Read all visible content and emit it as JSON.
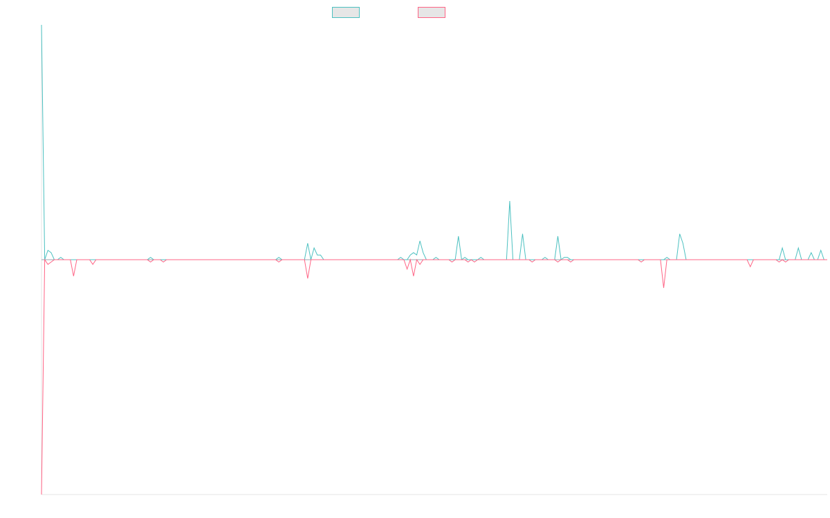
{
  "chart_data": {
    "type": "line",
    "title": "",
    "xlabel": "",
    "ylabel": "",
    "grid": false,
    "legend_position": "top-center",
    "ylim": [
      -100,
      100
    ],
    "series": [
      {
        "name": "",
        "color": "#4bc0c0",
        "values": [
          100,
          0,
          4,
          3,
          0,
          0,
          1,
          0,
          0,
          0,
          0,
          0,
          0,
          0,
          0,
          0,
          0,
          0,
          0,
          0,
          0,
          0,
          0,
          0,
          0,
          0,
          0,
          0,
          0,
          0,
          0,
          0,
          0,
          0,
          1,
          0,
          0,
          0,
          0,
          0,
          0,
          0,
          0,
          0,
          0,
          0,
          0,
          0,
          0,
          0,
          0,
          0,
          0,
          0,
          0,
          0,
          0,
          0,
          0,
          0,
          0,
          0,
          0,
          0,
          0,
          0,
          0,
          0,
          0,
          0,
          0,
          0,
          0,
          0,
          1,
          0,
          0,
          0,
          0,
          0,
          0,
          0,
          0,
          7,
          0,
          5,
          2,
          2,
          0,
          0,
          0,
          0,
          0,
          0,
          0,
          0,
          0,
          0,
          0,
          0,
          0,
          0,
          0,
          0,
          0,
          0,
          0,
          0,
          0,
          0,
          0,
          0,
          1,
          0,
          0,
          2,
          3,
          2,
          8,
          3,
          0,
          0,
          0,
          1,
          0,
          0,
          0,
          0,
          0,
          0,
          10,
          0,
          1,
          0,
          0,
          0,
          0,
          1,
          0,
          0,
          0,
          0,
          0,
          0,
          0,
          0,
          25,
          0,
          0,
          0,
          11,
          0,
          0,
          0,
          0,
          0,
          0,
          1,
          0,
          0,
          0,
          10,
          0,
          1,
          1,
          0,
          0,
          0,
          0,
          0,
          0,
          0,
          0,
          0,
          0,
          0,
          0,
          0,
          0,
          0,
          0,
          0,
          0,
          0,
          0,
          0,
          0,
          0,
          0,
          0,
          0,
          0,
          0,
          0,
          0,
          1,
          0,
          0,
          0,
          11,
          7,
          0,
          0,
          0,
          0,
          0,
          0,
          0,
          0,
          0,
          0,
          0,
          0,
          0,
          0,
          0,
          0,
          0,
          0,
          0,
          0,
          0,
          0,
          0,
          0,
          0,
          0,
          0,
          0,
          0,
          0,
          5,
          0,
          0,
          0,
          0,
          5,
          0,
          0,
          0,
          3,
          0,
          0,
          4,
          0
        ]
      },
      {
        "name": "",
        "color": "#ff6384",
        "values": [
          -100,
          0,
          -2,
          -1,
          0,
          0,
          0,
          0,
          0,
          0,
          -7,
          0,
          0,
          0,
          0,
          0,
          -2,
          0,
          0,
          0,
          0,
          0,
          0,
          0,
          0,
          0,
          0,
          0,
          0,
          0,
          0,
          0,
          0,
          0,
          -1,
          0,
          0,
          0,
          -1,
          0,
          0,
          0,
          0,
          0,
          0,
          0,
          0,
          0,
          0,
          0,
          0,
          0,
          0,
          0,
          0,
          0,
          0,
          0,
          0,
          0,
          0,
          0,
          0,
          0,
          0,
          0,
          0,
          0,
          0,
          0,
          0,
          0,
          0,
          0,
          -1,
          0,
          0,
          0,
          0,
          0,
          0,
          0,
          0,
          -8,
          0,
          0,
          0,
          0,
          0,
          0,
          0,
          0,
          0,
          0,
          0,
          0,
          0,
          0,
          0,
          0,
          0,
          0,
          0,
          0,
          0,
          0,
          0,
          0,
          0,
          0,
          0,
          0,
          0,
          0,
          -4,
          0,
          -7,
          0,
          -2,
          0,
          0,
          0,
          0,
          0,
          0,
          0,
          0,
          0,
          -1,
          0,
          0,
          0,
          0,
          -1,
          0,
          -1,
          0,
          0,
          0,
          0,
          0,
          0,
          0,
          0,
          0,
          0,
          0,
          0,
          0,
          0,
          0,
          0,
          0,
          -1,
          0,
          0,
          0,
          0,
          0,
          0,
          0,
          -1,
          0,
          0,
          0,
          -1,
          0,
          0,
          0,
          0,
          0,
          0,
          0,
          0,
          0,
          0,
          0,
          0,
          0,
          0,
          0,
          0,
          0,
          0,
          0,
          0,
          0,
          -1,
          0,
          0,
          0,
          0,
          0,
          0,
          -12,
          0,
          0,
          0,
          0,
          0,
          0,
          0,
          0,
          0,
          0,
          0,
          0,
          0,
          0,
          0,
          0,
          0,
          0,
          0,
          0,
          0,
          0,
          0,
          0,
          0,
          0,
          -3,
          0,
          0,
          0,
          0,
          0,
          0,
          0,
          0,
          -1,
          0,
          -1,
          0,
          0,
          0,
          0,
          0,
          0,
          0,
          0,
          0,
          0,
          0,
          0,
          0
        ]
      }
    ]
  }
}
